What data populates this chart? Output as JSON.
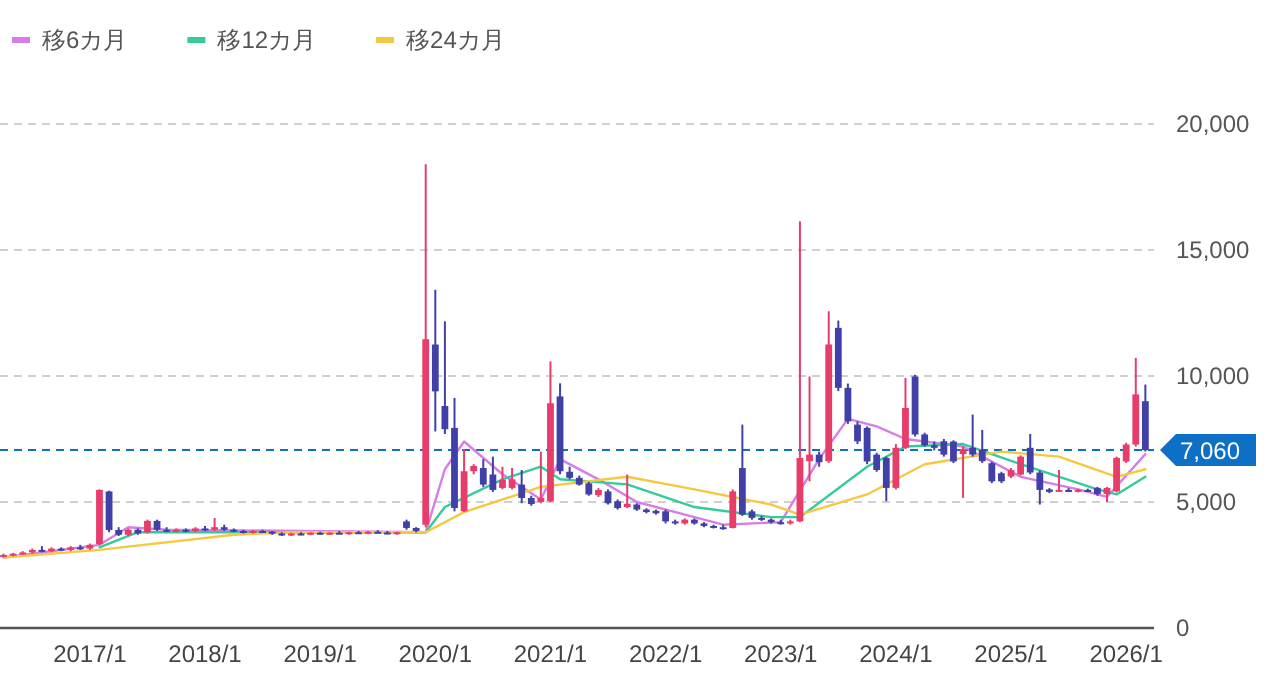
{
  "chart_data": {
    "type": "candlestick",
    "legend": "top left",
    "grid": "y",
    "xlim": [
      "2016-03-20",
      "2026-03-28"
    ],
    "xticks": [
      {
        "value": "2017-01",
        "label": "2017/1"
      },
      {
        "value": "2018-01",
        "label": "2018/1"
      },
      {
        "value": "2019-01",
        "label": "2019/1"
      },
      {
        "value": "2020-01",
        "label": "2020/1"
      },
      {
        "value": "2021-01",
        "label": "2021/1"
      },
      {
        "value": "2022-01",
        "label": "2022/1"
      },
      {
        "value": "2023-01",
        "label": "2023/1"
      },
      {
        "value": "2024-01",
        "label": "2024/1"
      },
      {
        "value": "2025-01",
        "label": "2025/1"
      },
      {
        "value": "2026-01",
        "label": "2026/1"
      }
    ],
    "ylim": [
      0,
      20000
    ],
    "yticks": [
      0,
      {
        "value": 5000,
        "label": "5,000"
      },
      {
        "value": 10000,
        "label": "10,000"
      },
      {
        "value": 15000,
        "label": "15,000"
      },
      {
        "value": 20000,
        "label": "20,000"
      }
    ],
    "x": [
      "2016-04",
      "2016-05",
      "2016-06",
      "2016-07",
      "2016-08",
      "2016-09",
      "2016-10",
      "2016-11",
      "2016-12",
      "2017-01",
      "2017-02",
      "2017-03",
      "2017-04",
      "2017-05",
      "2017-06",
      "2017-07",
      "2017-08",
      "2017-09",
      "2017-10",
      "2017-11",
      "2017-12",
      "2018-01",
      "2018-02",
      "2018-03",
      "2018-04",
      "2018-05",
      "2018-06",
      "2018-07",
      "2018-08",
      "2018-09",
      "2018-10",
      "2018-11",
      "2018-12",
      "2019-01",
      "2019-02",
      "2019-03",
      "2019-04",
      "2019-05",
      "2019-06",
      "2019-07",
      "2019-08",
      "2019-09",
      "2019-10",
      "2019-11",
      "2019-12",
      "2020-01",
      "2020-02",
      "2020-03",
      "2020-04",
      "2020-05",
      "2020-06",
      "2020-07",
      "2020-08",
      "2020-09",
      "2020-10",
      "2020-11",
      "2020-12",
      "2021-01",
      "2021-02",
      "2021-03",
      "2021-04",
      "2021-05",
      "2021-06",
      "2021-07",
      "2021-08",
      "2021-09",
      "2021-10",
      "2021-11",
      "2021-12",
      "2022-01",
      "2022-02",
      "2022-03",
      "2022-04",
      "2022-05",
      "2022-06",
      "2022-07",
      "2022-08",
      "2022-09",
      "2022-10",
      "2022-11",
      "2022-12",
      "2023-01",
      "2023-02",
      "2023-03",
      "2023-04",
      "2023-05",
      "2023-06",
      "2023-07",
      "2023-08",
      "2023-09",
      "2023-10",
      "2023-11",
      "2023-12",
      "2024-01",
      "2024-02",
      "2024-03",
      "2024-04",
      "2024-05",
      "2024-06",
      "2024-07",
      "2024-08",
      "2024-09",
      "2024-10",
      "2024-11",
      "2024-12",
      "2025-01",
      "2025-02",
      "2025-03",
      "2025-04",
      "2025-05",
      "2025-06",
      "2025-07",
      "2025-08",
      "2025-09",
      "2025-10",
      "2025-11",
      "2025-12",
      "2026-01",
      "2026-02",
      "2026-03"
    ],
    "ohlc": [
      [
        2850,
        2950,
        2800,
        2900
      ],
      [
        2900,
        2980,
        2850,
        2950
      ],
      [
        2950,
        3050,
        2900,
        3000
      ],
      [
        3000,
        3150,
        2950,
        3100
      ],
      [
        3100,
        3250,
        3000,
        3050
      ],
      [
        3050,
        3200,
        3000,
        3150
      ],
      [
        3150,
        3200,
        3050,
        3100
      ],
      [
        3100,
        3250,
        3050,
        3200
      ],
      [
        3200,
        3300,
        3100,
        3150
      ],
      [
        3150,
        3350,
        3100,
        3300
      ],
      [
        3330,
        5500,
        3300,
        5480
      ],
      [
        5420,
        5450,
        3800,
        3890
      ],
      [
        3890,
        4000,
        3650,
        3700
      ],
      [
        3700,
        3950,
        3650,
        3900
      ],
      [
        3900,
        3950,
        3700,
        3750
      ],
      [
        3800,
        4300,
        3750,
        4250
      ],
      [
        4250,
        4300,
        3850,
        3900
      ],
      [
        3900,
        4000,
        3800,
        3850
      ],
      [
        3850,
        3950,
        3800,
        3900
      ],
      [
        3900,
        3950,
        3800,
        3850
      ],
      [
        3850,
        4000,
        3800,
        3950
      ],
      [
        3950,
        4050,
        3850,
        3900
      ],
      [
        3900,
        4370,
        3850,
        4000
      ],
      [
        4000,
        4100,
        3850,
        3900
      ],
      [
        3900,
        3950,
        3800,
        3850
      ],
      [
        3850,
        3900,
        3750,
        3800
      ],
      [
        3800,
        3900,
        3750,
        3850
      ],
      [
        3850,
        3900,
        3780,
        3820
      ],
      [
        3820,
        3850,
        3700,
        3750
      ],
      [
        3750,
        3800,
        3650,
        3700
      ],
      [
        3700,
        3780,
        3650,
        3750
      ],
      [
        3750,
        3800,
        3680,
        3720
      ],
      [
        3720,
        3800,
        3680,
        3780
      ],
      [
        3780,
        3820,
        3700,
        3740
      ],
      [
        3740,
        3800,
        3700,
        3780
      ],
      [
        3780,
        3850,
        3730,
        3760
      ],
      [
        3760,
        3820,
        3700,
        3800
      ],
      [
        3800,
        3850,
        3740,
        3770
      ],
      [
        3770,
        3850,
        3720,
        3820
      ],
      [
        3820,
        3880,
        3760,
        3790
      ],
      [
        3790,
        3850,
        3720,
        3760
      ],
      [
        3760,
        3820,
        3700,
        3800
      ],
      [
        4230,
        4300,
        3900,
        3970
      ],
      [
        3970,
        4000,
        3800,
        3850
      ],
      [
        4100,
        18400,
        4000,
        11460
      ],
      [
        11250,
        13420,
        7800,
        9390
      ],
      [
        8810,
        12170,
        7700,
        7890
      ],
      [
        7940,
        9130,
        4630,
        4760
      ],
      [
        4630,
        7070,
        4600,
        6220
      ],
      [
        6220,
        6500,
        6100,
        6430
      ],
      [
        6350,
        6700,
        5600,
        5690
      ],
      [
        6090,
        6800,
        5400,
        5480
      ],
      [
        5560,
        6400,
        5500,
        5880
      ],
      [
        5560,
        6350,
        5500,
        5900
      ],
      [
        5690,
        6270,
        4950,
        5160
      ],
      [
        5160,
        5250,
        4850,
        4920
      ],
      [
        5000,
        7000,
        4950,
        5160
      ],
      [
        5030,
        10580,
        5000,
        8920
      ],
      [
        9190,
        9710,
        6100,
        6220
      ],
      [
        6200,
        6400,
        5900,
        5960
      ],
      [
        5960,
        6050,
        5650,
        5690
      ],
      [
        5740,
        5800,
        5250,
        5300
      ],
      [
        5270,
        5550,
        5200,
        5480
      ],
      [
        5420,
        5500,
        4900,
        4950
      ],
      [
        5030,
        5100,
        4700,
        4760
      ],
      [
        4800,
        6090,
        4750,
        4930
      ],
      [
        4900,
        4950,
        4650,
        4700
      ],
      [
        4700,
        4750,
        4550,
        4600
      ],
      [
        4650,
        4700,
        4500,
        4550
      ],
      [
        4630,
        4700,
        4150,
        4230
      ],
      [
        4230,
        4300,
        4100,
        4150
      ],
      [
        4150,
        4350,
        4100,
        4300
      ],
      [
        4300,
        4350,
        4100,
        4150
      ],
      [
        4150,
        4200,
        4000,
        4050
      ],
      [
        4050,
        4100,
        3950,
        4000
      ],
      [
        4000,
        4100,
        3900,
        3970
      ],
      [
        3970,
        5500,
        3950,
        5420
      ],
      [
        6350,
        8070,
        4450,
        4500
      ],
      [
        4630,
        4700,
        4300,
        4370
      ],
      [
        4370,
        4450,
        4250,
        4300
      ],
      [
        4300,
        4350,
        4150,
        4200
      ],
      [
        4200,
        4300,
        4100,
        4150
      ],
      [
        4150,
        4300,
        4100,
        4230
      ],
      [
        4230,
        16140,
        4200,
        6750
      ],
      [
        6620,
        9980,
        5820,
        6880
      ],
      [
        6880,
        7000,
        6400,
        6580
      ],
      [
        6620,
        12570,
        6550,
        11250
      ],
      [
        11910,
        12200,
        9400,
        9530
      ],
      [
        9530,
        9700,
        8100,
        8200
      ],
      [
        8070,
        8200,
        7300,
        7410
      ],
      [
        7940,
        8000,
        6500,
        6610
      ],
      [
        6880,
        6950,
        6200,
        6270
      ],
      [
        6750,
        6800,
        5030,
        5560
      ],
      [
        5560,
        7300,
        5500,
        7150
      ],
      [
        7150,
        9920,
        7100,
        8730
      ],
      [
        9980,
        10050,
        7600,
        7680
      ],
      [
        7680,
        7750,
        7200,
        7250
      ],
      [
        7250,
        7400,
        7050,
        7150
      ],
      [
        7410,
        7500,
        6800,
        6880
      ],
      [
        7400,
        7450,
        6550,
        6610
      ],
      [
        6900,
        7200,
        5160,
        7100
      ],
      [
        7150,
        8470,
        6800,
        6880
      ],
      [
        7070,
        7860,
        6550,
        6620
      ],
      [
        6540,
        6600,
        5750,
        5820
      ],
      [
        6140,
        6200,
        5750,
        5820
      ],
      [
        6010,
        6350,
        5950,
        6270
      ],
      [
        6090,
        6850,
        6050,
        6800
      ],
      [
        7150,
        7700,
        6100,
        6170
      ],
      [
        6170,
        6250,
        4900,
        5480
      ],
      [
        5500,
        5550,
        5350,
        5400
      ],
      [
        5450,
        6270,
        5400,
        5480
      ],
      [
        5480,
        5550,
        5400,
        5450
      ],
      [
        5450,
        5520,
        5380,
        5480
      ],
      [
        5480,
        5530,
        5400,
        5420
      ],
      [
        5560,
        5600,
        5250,
        5320
      ],
      [
        5320,
        5600,
        5000,
        5560
      ],
      [
        5420,
        6800,
        5380,
        6750
      ],
      [
        6610,
        7350,
        6550,
        7280
      ],
      [
        7280,
        10720,
        7200,
        9270
      ],
      [
        9000,
        9660,
        7000,
        7060
      ]
    ],
    "colors": [
      "#e83d6b",
      "#e83d6b",
      "#e83d6b",
      "#e83d6b",
      "#4040a8",
      "#e83d6b",
      "#4040a8",
      "#e83d6b",
      "#4040a8",
      "#e83d6b",
      "#e83d6b",
      "#4040a8",
      "#4040a8",
      "#e83d6b",
      "#4040a8",
      "#e83d6b",
      "#4040a8",
      "#4040a8",
      "#e83d6b",
      "#4040a8",
      "#e83d6b",
      "#4040a8",
      "#e83d6b",
      "#4040a8",
      "#4040a8",
      "#4040a8",
      "#e83d6b",
      "#4040a8",
      "#4040a8",
      "#4040a8",
      "#e83d6b",
      "#4040a8",
      "#e83d6b",
      "#4040a8",
      "#e83d6b",
      "#4040a8",
      "#e83d6b",
      "#4040a8",
      "#e83d6b",
      "#4040a8",
      "#4040a8",
      "#e83d6b",
      "#4040a8",
      "#4040a8",
      "#e83d6b",
      "#4040a8",
      "#4040a8",
      "#4040a8",
      "#e83d6b",
      "#e83d6b",
      "#4040a8",
      "#4040a8",
      "#e83d6b",
      "#e83d6b",
      "#4040a8",
      "#4040a8",
      "#e83d6b",
      "#e83d6b",
      "#4040a8",
      "#4040a8",
      "#4040a8",
      "#4040a8",
      "#e83d6b",
      "#4040a8",
      "#4040a8",
      "#e83d6b",
      "#4040a8",
      "#4040a8",
      "#4040a8",
      "#4040a8",
      "#4040a8",
      "#e83d6b",
      "#4040a8",
      "#4040a8",
      "#4040a8",
      "#4040a8",
      "#e83d6b",
      "#4040a8",
      "#4040a8",
      "#4040a8",
      "#4040a8",
      "#4040a8",
      "#e83d6b",
      "#e83d6b",
      "#e83d6b",
      "#4040a8",
      "#e83d6b",
      "#4040a8",
      "#4040a8",
      "#4040a8",
      "#4040a8",
      "#4040a8",
      "#4040a8",
      "#e83d6b",
      "#e83d6b",
      "#4040a8",
      "#4040a8",
      "#4040a8",
      "#4040a8",
      "#4040a8",
      "#e83d6b",
      "#4040a8",
      "#4040a8",
      "#4040a8",
      "#4040a8",
      "#e83d6b",
      "#e83d6b",
      "#4040a8",
      "#4040a8",
      "#4040a8",
      "#e83d6b",
      "#4040a8",
      "#e83d6b",
      "#4040a8",
      "#4040a8",
      "#e83d6b",
      "#e83d6b",
      "#e83d6b",
      "#e83d6b",
      "#4040a8"
    ],
    "series": [
      {
        "name": "移6カ月",
        "type": "line",
        "color": "#d67ee6",
        "x": [
          "2016-04",
          "2017-02",
          "2017-05",
          "2017-09",
          "2019-12",
          "2020-02",
          "2020-04",
          "2020-08",
          "2020-12",
          "2021-02",
          "2021-06",
          "2021-10",
          "2022-07",
          "2023-01",
          "2023-05",
          "2023-08",
          "2023-11",
          "2024-02",
          "2024-08",
          "2025-02",
          "2025-08",
          "2025-11",
          "2026-03"
        ],
        "values": [
          2800,
          3300,
          4000,
          3900,
          3800,
          6300,
          7400,
          6100,
          5100,
          6700,
          5900,
          5000,
          4100,
          4200,
          6700,
          8300,
          8000,
          7500,
          7200,
          6000,
          5500,
          5200,
          6900
        ]
      },
      {
        "name": "移12カ月",
        "type": "line",
        "color": "#33cc99",
        "x": [
          "2017-02",
          "2017-06",
          "2018-04",
          "2019-12",
          "2020-02",
          "2020-08",
          "2020-12",
          "2021-02",
          "2021-09",
          "2022-04",
          "2022-12",
          "2023-03",
          "2023-10",
          "2024-02",
          "2024-08",
          "2025-02",
          "2025-10",
          "2025-12",
          "2026-03"
        ],
        "values": [
          3200,
          3800,
          3800,
          3800,
          4800,
          5900,
          6400,
          5900,
          5700,
          4800,
          4400,
          4400,
          6400,
          7200,
          7300,
          6500,
          5500,
          5300,
          6000
        ]
      },
      {
        "name": "移24カ月",
        "type": "line",
        "color": "#f5c842",
        "x": [
          "2016-04",
          "2017-02",
          "2018-04",
          "2018-10",
          "2019-12",
          "2020-04",
          "2020-12",
          "2021-09",
          "2022-04",
          "2022-08",
          "2022-12",
          "2023-03",
          "2023-10",
          "2024-04",
          "2024-12",
          "2025-06",
          "2025-12",
          "2026-03"
        ],
        "values": [
          2800,
          3100,
          3700,
          3800,
          3800,
          4600,
          5600,
          6000,
          5500,
          5200,
          4900,
          4500,
          5300,
          6500,
          7000,
          6800,
          6000,
          6300
        ]
      }
    ],
    "ref_lines": [
      {
        "axis": "y",
        "value": 7060,
        "label": "7,060",
        "color": "#0e6fc7",
        "line_style": "dashed"
      }
    ]
  }
}
